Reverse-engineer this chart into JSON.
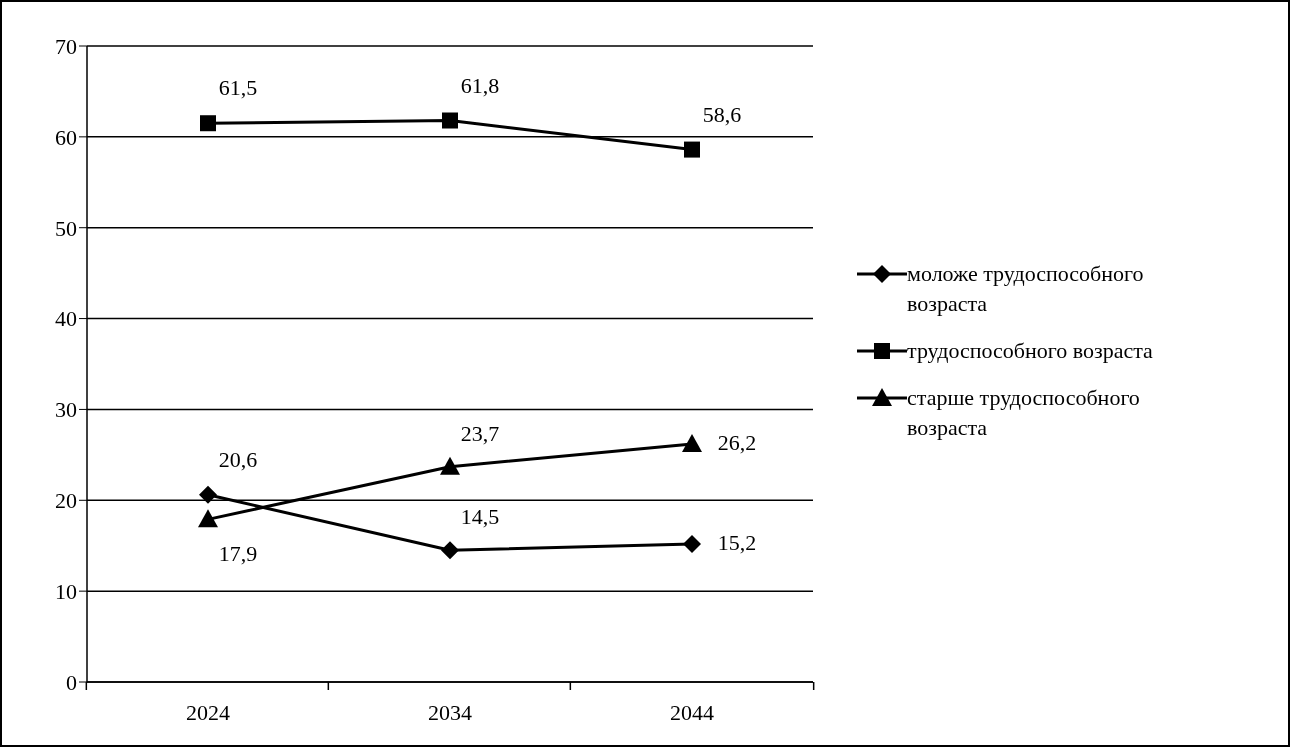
{
  "chart_data": {
    "type": "line",
    "categories": [
      "2024",
      "2034",
      "2044"
    ],
    "series": [
      {
        "name": "моложе трудоспособного возраста",
        "color": "#000000",
        "marker": "diamond",
        "values": [
          20.6,
          14.5,
          15.2
        ],
        "value_labels": [
          "20,6",
          "14,5",
          "15,2"
        ]
      },
      {
        "name": "трудоспособного возраста",
        "color": "#000000",
        "marker": "square",
        "values": [
          61.5,
          61.8,
          58.6
        ],
        "value_labels": [
          "61,5",
          "61,8",
          "58,6"
        ]
      },
      {
        "name": "старше трудоспособного возраста",
        "color": "#000000",
        "marker": "triangle",
        "values": [
          17.9,
          23.7,
          26.2
        ],
        "value_labels": [
          "17,9",
          "23,7",
          "26,2"
        ]
      }
    ],
    "ylim": [
      0,
      70
    ],
    "yticks": [
      0,
      10,
      20,
      30,
      40,
      50,
      60,
      70
    ],
    "grid": "y",
    "legend": "right",
    "line_style": "solid"
  }
}
